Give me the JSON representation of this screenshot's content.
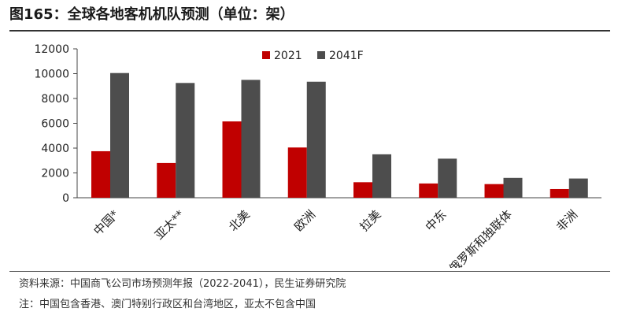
{
  "header": {
    "title": "图165：全球各地客机机队预测（单位：架）"
  },
  "footer": {
    "source": "资料来源：中国商飞公司市场预测年报（2022-2041），民生证券研究院",
    "note": "注：中国包含香港、澳门特别行政区和台湾地区，亚太不包含中国"
  },
  "colors": {
    "series_2021": "#c00000",
    "series_2041F": "#4d4d4d"
  },
  "chart_data": {
    "type": "bar",
    "categories": [
      "中国*",
      "亚太**",
      "北美",
      "欧洲",
      "拉美",
      "中东",
      "俄罗斯和独联体",
      "非洲"
    ],
    "series": [
      {
        "name": "2021",
        "values": [
          3750,
          2800,
          6150,
          4050,
          1250,
          1150,
          1100,
          700
        ]
      },
      {
        "name": "2041F",
        "values": [
          10050,
          9250,
          9500,
          9350,
          3500,
          3150,
          1600,
          1550
        ]
      }
    ],
    "yticks": [
      "0",
      "2000",
      "4000",
      "6000",
      "8000",
      "10000",
      "12000"
    ],
    "ylim": [
      0,
      12000
    ],
    "grid": false,
    "legend": "top-right"
  }
}
